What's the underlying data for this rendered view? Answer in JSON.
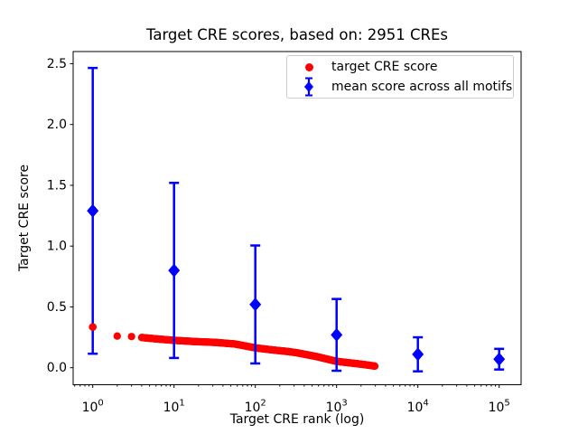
{
  "colors": {
    "red": "#ff0000",
    "blue": "#0000ff",
    "text": "#000000",
    "spine": "#000000",
    "legend_border": "#cccccc",
    "background": "#ffffff"
  },
  "chart_data": {
    "type": "scatter",
    "title": "Target CRE scores, based on: 2951 CREs",
    "xlabel": "Target CRE rank (log)",
    "ylabel": "Target CRE score",
    "x_scale": "log",
    "x_tick_base": "10",
    "x_tick_exponents": [
      0,
      1,
      2,
      3,
      4,
      5
    ],
    "y_ticks": [
      0.0,
      0.5,
      1.0,
      1.5,
      2.0,
      2.5
    ],
    "ylim": [
      -0.14,
      2.6
    ],
    "xlim_log10": [
      -0.241,
      5.27
    ],
    "grid": false,
    "legend": [
      "target CRE score",
      "mean score across all motifs"
    ],
    "legend_position": "upper right",
    "series": [
      {
        "name": "target CRE score",
        "type": "scatter",
        "marker": "circle",
        "color": "#ff0000",
        "n_points": 2951,
        "anchor_ranks": [
          1,
          2,
          3,
          4,
          6,
          10,
          18,
          32,
          56,
          100,
          158,
          251,
          316,
          562,
          1000,
          1778,
          2512,
          2951
        ],
        "anchor_scores": [
          0.335,
          0.26,
          0.256,
          0.248,
          0.237,
          0.225,
          0.215,
          0.208,
          0.195,
          0.163,
          0.147,
          0.133,
          0.124,
          0.092,
          0.052,
          0.033,
          0.02,
          0.013
        ]
      },
      {
        "name": "mean score across all motifs",
        "type": "errorbar",
        "marker": "diamond",
        "color": "#0000ff",
        "x": [
          1,
          10,
          100,
          1000,
          10000,
          100000
        ],
        "mean": [
          1.29,
          0.8,
          0.52,
          0.27,
          0.11,
          0.07
        ],
        "std": [
          1.175,
          0.72,
          0.485,
          0.295,
          0.14,
          0.085
        ]
      }
    ]
  }
}
